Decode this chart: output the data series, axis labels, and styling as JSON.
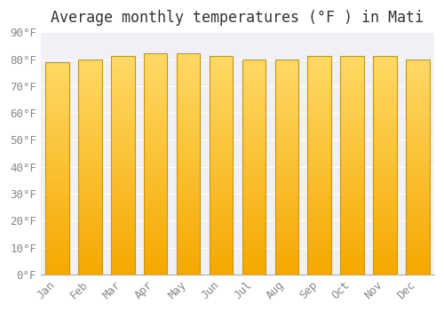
{
  "title": "Average monthly temperatures (°F ) in Mati",
  "months": [
    "Jan",
    "Feb",
    "Mar",
    "Apr",
    "May",
    "Jun",
    "Jul",
    "Aug",
    "Sep",
    "Oct",
    "Nov",
    "Dec"
  ],
  "values": [
    79,
    80,
    81,
    82,
    82,
    81,
    80,
    80,
    81,
    81,
    81,
    80
  ],
  "ylim": [
    0,
    90
  ],
  "yticks": [
    0,
    10,
    20,
    30,
    40,
    50,
    60,
    70,
    80,
    90
  ],
  "ytick_labels": [
    "0°F",
    "10°F",
    "20°F",
    "30°F",
    "40°F",
    "50°F",
    "60°F",
    "70°F",
    "80°F",
    "90°F"
  ],
  "bar_color_bottom": "#F5A800",
  "bar_color_top": "#FFD966",
  "bar_edge_color": "#C8960A",
  "background_color": "#FFFFFF",
  "plot_bg_color": "#F0F0F5",
  "grid_color": "#FFFFFF",
  "title_fontsize": 12,
  "tick_fontsize": 9,
  "font_family": "monospace",
  "title_color": "#333333",
  "tick_color": "#888888"
}
